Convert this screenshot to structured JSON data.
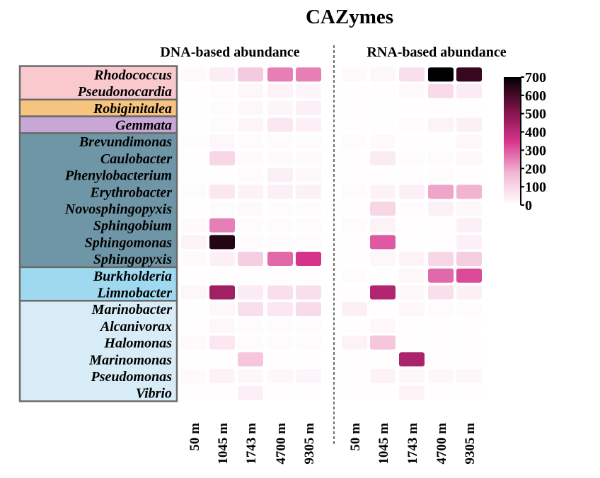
{
  "chart_data": {
    "type": "heatmap",
    "title": "CAZymes",
    "panels": [
      "DNA-based abundance",
      "RNA-based abundance"
    ],
    "columns": [
      "50 m",
      "1045 m",
      "1743 m",
      "4700 m",
      "9305 m"
    ],
    "rows": [
      "Rhodococcus",
      "Pseudonocardia",
      "Robiginitalea",
      "Gemmata",
      "Brevundimonas",
      "Caulobacter",
      "Phenylobacterium",
      "Erythrobacter",
      "Novosphingopyxis",
      "Sphingobium",
      "Sphingomonas",
      "Sphingopyxis",
      "Burkholderia",
      "Limnobacter",
      "Marinobacter",
      "Alcanivorax",
      "Halomonas",
      "Marinomonas",
      "Pseudomonas",
      "Vibrio"
    ],
    "groups": [
      {
        "start": 0,
        "end": 1,
        "color": "#f9c9cd"
      },
      {
        "start": 2,
        "end": 2,
        "color": "#f6c47f"
      },
      {
        "start": 3,
        "end": 3,
        "color": "#c8a7d6"
      },
      {
        "start": 4,
        "end": 11,
        "color": "#6f96a7"
      },
      {
        "start": 12,
        "end": 13,
        "color": "#9fd9ef"
      },
      {
        "start": 14,
        "end": 19,
        "color": "#d7ecf6"
      }
    ],
    "colorbar": {
      "min": 0,
      "max": 700,
      "ticks": [
        0,
        100,
        200,
        300,
        400,
        500,
        600,
        700
      ],
      "stops": [
        "#ffffff",
        "#f2b8d3",
        "#d6338d",
        "#7a1146",
        "#000000"
      ]
    },
    "dna": [
      [
        15,
        45,
        130,
        250,
        250
      ],
      [
        5,
        10,
        20,
        30,
        25
      ],
      [
        5,
        10,
        20,
        25,
        40
      ],
      [
        5,
        10,
        25,
        60,
        40
      ],
      [
        8,
        20,
        10,
        10,
        10
      ],
      [
        5,
        100,
        15,
        15,
        15
      ],
      [
        5,
        5,
        10,
        40,
        20
      ],
      [
        10,
        60,
        30,
        40,
        35
      ],
      [
        5,
        10,
        15,
        10,
        10
      ],
      [
        15,
        250,
        10,
        10,
        10
      ],
      [
        30,
        650,
        10,
        10,
        10
      ],
      [
        15,
        40,
        120,
        280,
        350
      ],
      [
        5,
        5,
        5,
        5,
        5
      ],
      [
        20,
        450,
        50,
        80,
        80
      ],
      [
        5,
        20,
        80,
        60,
        90
      ],
      [
        5,
        20,
        10,
        10,
        10
      ],
      [
        15,
        60,
        10,
        10,
        10
      ],
      [
        5,
        5,
        140,
        5,
        5
      ],
      [
        15,
        30,
        20,
        20,
        25
      ],
      [
        5,
        5,
        40,
        5,
        5
      ]
    ],
    "rna": [
      [
        15,
        20,
        80,
        700,
        620
      ],
      [
        5,
        5,
        15,
        90,
        50
      ],
      [
        5,
        5,
        5,
        5,
        5
      ],
      [
        5,
        5,
        10,
        30,
        40
      ],
      [
        10,
        15,
        5,
        5,
        20
      ],
      [
        5,
        50,
        10,
        10,
        20
      ],
      [
        5,
        5,
        5,
        10,
        5
      ],
      [
        10,
        30,
        40,
        200,
        180
      ],
      [
        5,
        100,
        10,
        40,
        20
      ],
      [
        10,
        30,
        5,
        5,
        40
      ],
      [
        5,
        300,
        5,
        5,
        40
      ],
      [
        5,
        20,
        30,
        100,
        120
      ],
      [
        10,
        5,
        20,
        280,
        320
      ],
      [
        5,
        420,
        20,
        80,
        40
      ],
      [
        40,
        5,
        20,
        10,
        10
      ],
      [
        5,
        20,
        5,
        5,
        5
      ],
      [
        30,
        140,
        5,
        5,
        5
      ],
      [
        5,
        5,
        430,
        5,
        5
      ],
      [
        5,
        30,
        20,
        20,
        20
      ],
      [
        5,
        5,
        30,
        5,
        5
      ]
    ]
  }
}
